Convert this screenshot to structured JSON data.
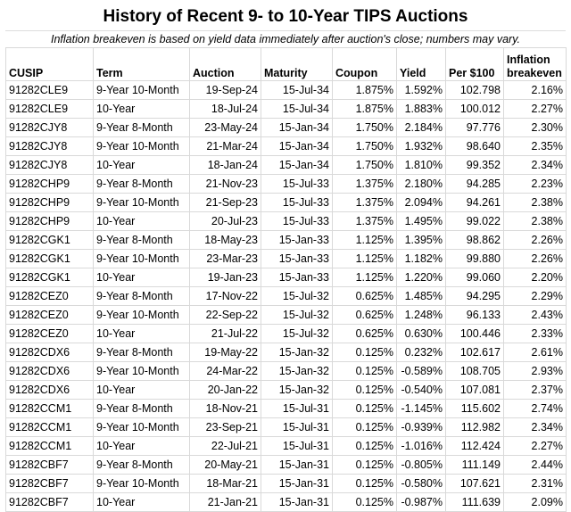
{
  "header": {
    "title": "History of Recent 9- to 10-Year TIPS Auctions",
    "subtitle": "Inflation breakeven is based on yield data immediately after auction's close; numbers may vary."
  },
  "table": {
    "columns": [
      "CUSIP",
      "Term",
      "Auction",
      "Maturity",
      "Coupon",
      "Yield",
      "Per $100",
      "Inflation breakeven"
    ],
    "rows": [
      [
        "91282CLE9",
        "9-Year 10-Month",
        "19-Sep-24",
        "15-Jul-34",
        "1.875%",
        "1.592%",
        "102.798",
        "2.16%"
      ],
      [
        "91282CLE9",
        "10-Year",
        "18-Jul-24",
        "15-Jul-34",
        "1.875%",
        "1.883%",
        "100.012",
        "2.27%"
      ],
      [
        "91282CJY8",
        "9-Year 8-Month",
        "23-May-24",
        "15-Jan-34",
        "1.750%",
        "2.184%",
        "97.776",
        "2.30%"
      ],
      [
        "91282CJY8",
        "9-Year 10-Month",
        "21-Mar-24",
        "15-Jan-34",
        "1.750%",
        "1.932%",
        "98.640",
        "2.35%"
      ],
      [
        "91282CJY8",
        "10-Year",
        "18-Jan-24",
        "15-Jan-34",
        "1.750%",
        "1.810%",
        "99.352",
        "2.34%"
      ],
      [
        "91282CHP9",
        "9-Year 8-Month",
        "21-Nov-23",
        "15-Jul-33",
        "1.375%",
        "2.180%",
        "94.285",
        "2.23%"
      ],
      [
        "91282CHP9",
        "9-Year 10-Month",
        "21-Sep-23",
        "15-Jul-33",
        "1.375%",
        "2.094%",
        "94.261",
        "2.38%"
      ],
      [
        "91282CHP9",
        "10-Year",
        "20-Jul-23",
        "15-Jul-33",
        "1.375%",
        "1.495%",
        "99.022",
        "2.38%"
      ],
      [
        "91282CGK1",
        "9-Year 8-Month",
        "18-May-23",
        "15-Jan-33",
        "1.125%",
        "1.395%",
        "98.862",
        "2.26%"
      ],
      [
        "91282CGK1",
        "9-Year 10-Month",
        "23-Mar-23",
        "15-Jan-33",
        "1.125%",
        "1.182%",
        "99.880",
        "2.26%"
      ],
      [
        "91282CGK1",
        "10-Year",
        "19-Jan-23",
        "15-Jan-33",
        "1.125%",
        "1.220%",
        "99.060",
        "2.20%"
      ],
      [
        "91282CEZ0",
        "9-Year 8-Month",
        "17-Nov-22",
        "15-Jul-32",
        "0.625%",
        "1.485%",
        "94.295",
        "2.29%"
      ],
      [
        "91282CEZ0",
        "9-Year 10-Month",
        "22-Sep-22",
        "15-Jul-32",
        "0.625%",
        "1.248%",
        "96.133",
        "2.43%"
      ],
      [
        "91282CEZ0",
        "10-Year",
        "21-Jul-22",
        "15-Jul-32",
        "0.625%",
        "0.630%",
        "100.446",
        "2.33%"
      ],
      [
        "91282CDX6",
        "9-Year 8-Month",
        "19-May-22",
        "15-Jan-32",
        "0.125%",
        "0.232%",
        "102.617",
        "2.61%"
      ],
      [
        "91282CDX6",
        "9-Year 10-Month",
        "24-Mar-22",
        "15-Jan-32",
        "0.125%",
        "-0.589%",
        "108.705",
        "2.93%"
      ],
      [
        "91282CDX6",
        "10-Year",
        "20-Jan-22",
        "15-Jan-32",
        "0.125%",
        "-0.540%",
        "107.081",
        "2.37%"
      ],
      [
        "91282CCM1",
        "9-Year 8-Month",
        "18-Nov-21",
        "15-Jul-31",
        "0.125%",
        "-1.145%",
        "115.602",
        "2.74%"
      ],
      [
        "91282CCM1",
        "9-Year 10-Month",
        "23-Sep-21",
        "15-Jul-31",
        "0.125%",
        "-0.939%",
        "112.982",
        "2.34%"
      ],
      [
        "91282CCM1",
        "10-Year",
        "22-Jul-21",
        "15-Jul-31",
        "0.125%",
        "-1.016%",
        "112.424",
        "2.27%"
      ],
      [
        "91282CBF7",
        "9-Year 8-Month",
        "20-May-21",
        "15-Jan-31",
        "0.125%",
        "-0.805%",
        "111.149",
        "2.44%"
      ],
      [
        "91282CBF7",
        "9-Year 10-Month",
        "18-Mar-21",
        "15-Jan-31",
        "0.125%",
        "-0.580%",
        "107.621",
        "2.31%"
      ],
      [
        "91282CBF7",
        "10-Year",
        "21-Jan-21",
        "15-Jan-31",
        "0.125%",
        "-0.987%",
        "111.639",
        "2.09%"
      ]
    ]
  }
}
